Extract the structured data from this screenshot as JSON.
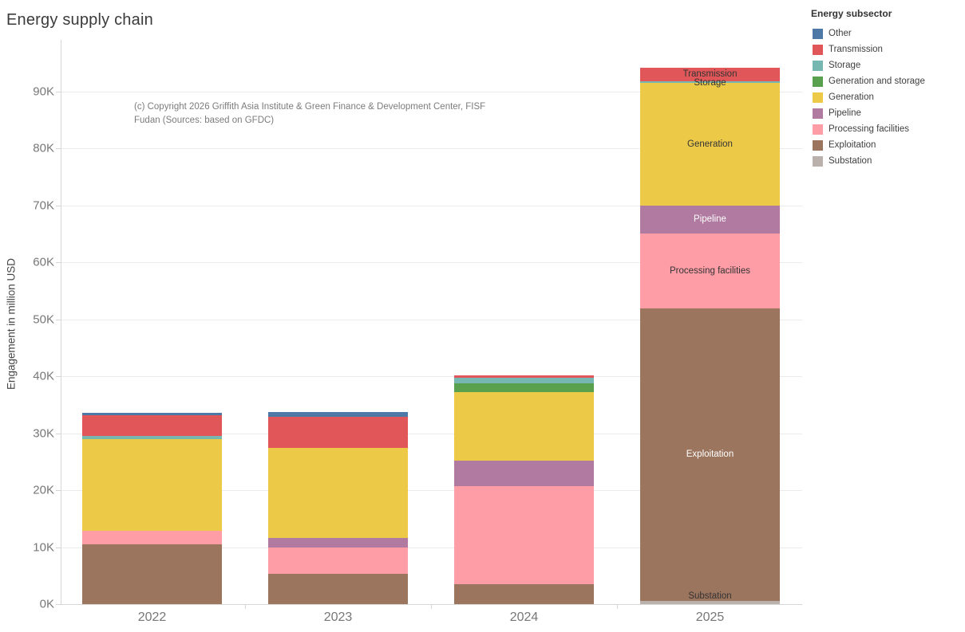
{
  "title": "Energy supply chain",
  "annotation": {
    "lines": [
      "(c) Copyright 2026 Griffith Asia Institute & Green Finance & Development Center, FISF",
      "Fudan (Sources: based on GFDC)"
    ]
  },
  "y_axis": {
    "label": "Engagement in million USD",
    "ticks": [
      "0K",
      "10K",
      "20K",
      "30K",
      "40K",
      "50K",
      "60K",
      "70K",
      "80K",
      "90K"
    ]
  },
  "x_axis": {
    "labels": [
      "2022",
      "2023",
      "2024",
      "2025"
    ]
  },
  "legend": {
    "title": "Energy subsector",
    "items": [
      {
        "label": "Other",
        "color": "#4e79a7"
      },
      {
        "label": "Transmission",
        "color": "#e15759"
      },
      {
        "label": "Storage",
        "color": "#76b7b2"
      },
      {
        "label": "Generation and storage",
        "color": "#59a14f"
      },
      {
        "label": "Generation",
        "color": "#edc948"
      },
      {
        "label": "Pipeline",
        "color": "#b07aa1"
      },
      {
        "label": "Processing facilities",
        "color": "#ff9da7"
      },
      {
        "label": "Exploitation",
        "color": "#9c755f"
      },
      {
        "label": "Substation",
        "color": "#bab0ac"
      }
    ]
  },
  "chart_data": {
    "type": "bar",
    "stacked": true,
    "title": "Energy supply chain",
    "xlabel": "",
    "ylabel": "Engagement in million USD",
    "unit": "million USD",
    "categories": [
      "2022",
      "2023",
      "2024",
      "2025"
    ],
    "ylim": [
      0,
      95000
    ],
    "ytick_step": 10000,
    "grid": true,
    "legend_position": "top-right",
    "series": [
      {
        "name": "Substation",
        "color": "#bab0ac",
        "values": [
          0,
          0,
          0,
          600
        ]
      },
      {
        "name": "Exploitation",
        "color": "#9c755f",
        "values": [
          10500,
          5300,
          3500,
          51300
        ]
      },
      {
        "name": "Processing facilities",
        "color": "#ff9da7",
        "values": [
          2400,
          4600,
          17200,
          13200
        ]
      },
      {
        "name": "Pipeline",
        "color": "#b07aa1",
        "values": [
          0,
          1700,
          4500,
          4800
        ]
      },
      {
        "name": "Generation",
        "color": "#edc948",
        "values": [
          16100,
          15800,
          12000,
          21500
        ]
      },
      {
        "name": "Generation and storage",
        "color": "#59a14f",
        "values": [
          0,
          0,
          1600,
          0
        ]
      },
      {
        "name": "Storage",
        "color": "#76b7b2",
        "values": [
          500,
          0,
          900,
          400
        ]
      },
      {
        "name": "Transmission",
        "color": "#e15759",
        "values": [
          3600,
          5500,
          500,
          2300
        ]
      },
      {
        "name": "Other",
        "color": "#4e79a7",
        "values": [
          400,
          800,
          0,
          0
        ]
      }
    ],
    "bar_labels": [
      {
        "category": "2025",
        "series": "Transmission",
        "color": "#333333",
        "dy": 0
      },
      {
        "category": "2025",
        "series": "Storage",
        "color": "#333333",
        "dy": 1
      },
      {
        "category": "2025",
        "series": "Generation",
        "color": "#333333",
        "dy": 0
      },
      {
        "category": "2025",
        "series": "Pipeline",
        "color": "#ffffff",
        "dy": 0
      },
      {
        "category": "2025",
        "series": "Processing facilities",
        "color": "#333333",
        "dy": 0
      },
      {
        "category": "2025",
        "series": "Exploitation",
        "color": "#ffffff",
        "dy": 0
      },
      {
        "category": "2025",
        "series": "Substation",
        "color": "#333333",
        "dy": -8
      }
    ]
  }
}
